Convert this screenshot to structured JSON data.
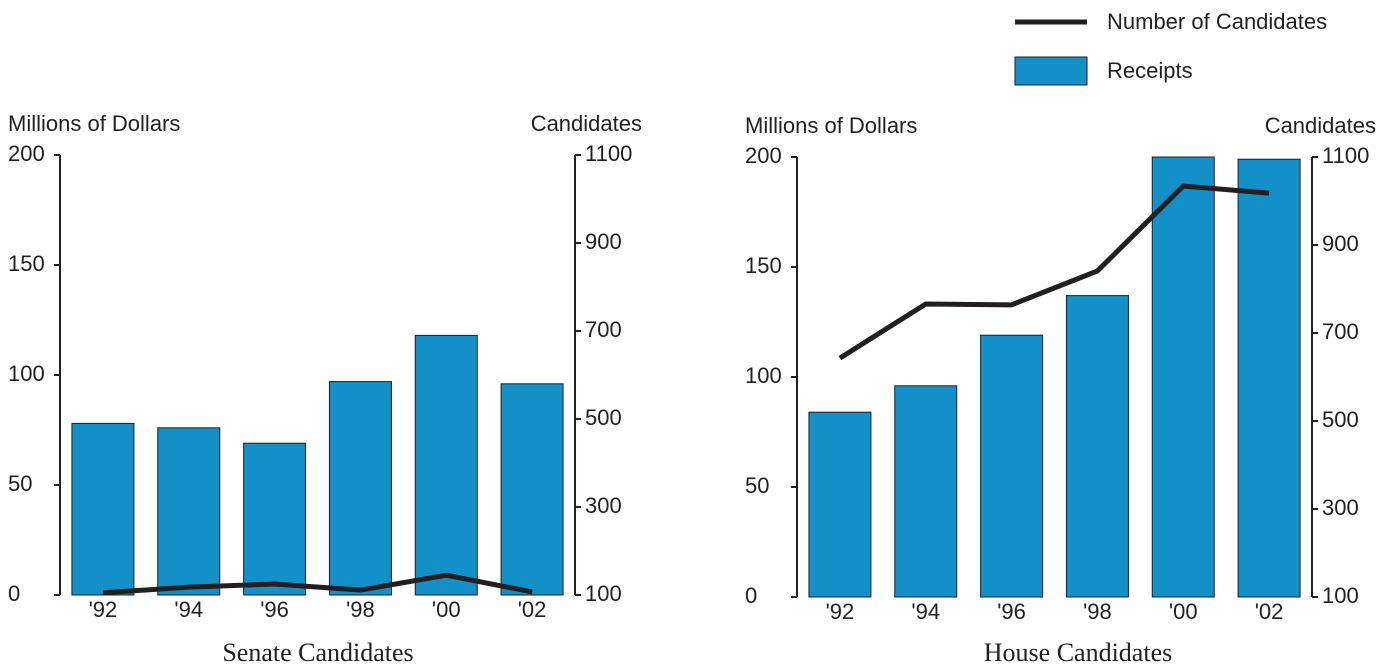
{
  "legend": [
    "Number of Candidates",
    "Receipts"
  ],
  "chart_data": [
    {
      "type": "bar",
      "title": "Senate Candidates",
      "ylabel": "Millions of Dollars",
      "y2label": "Candidates",
      "categories": [
        "'92",
        "'94",
        "'96",
        "'98",
        "'00",
        "'02"
      ],
      "series": [
        {
          "type": "bar",
          "color": "#1490c8",
          "values": [
            78,
            76,
            69,
            97,
            118,
            96
          ]
        },
        {
          "type": "line",
          "axis": "y2",
          "color": "#231f20",
          "values": [
            105,
            118,
            125,
            111,
            145,
            107
          ]
        }
      ],
      "ylim": [
        0,
        200
      ],
      "yticks": [
        0,
        50,
        100,
        150,
        200
      ],
      "y2lim": [
        100,
        1100
      ],
      "y2ticks": [
        100,
        300,
        500,
        700,
        900,
        1100
      ]
    },
    {
      "type": "bar",
      "title": "House Candidates",
      "ylabel": "Millions of Dollars",
      "y2label": "Candidates",
      "categories": [
        "'92",
        "'94",
        "'96",
        "'98",
        "'00",
        "'02"
      ],
      "series": [
        {
          "type": "bar",
          "color": "#1490c8",
          "values": [
            84,
            96,
            119,
            137,
            200,
            199
          ]
        },
        {
          "type": "line",
          "axis": "y2",
          "color": "#231f20",
          "values": [
            643,
            766,
            764,
            841,
            1034,
            1018
          ]
        }
      ],
      "ylim": [
        0,
        200
      ],
      "yticks": [
        0,
        50,
        100,
        150,
        200
      ],
      "y2lim": [
        100,
        1100
      ],
      "y2ticks": [
        100,
        300,
        500,
        700,
        900,
        1100
      ]
    }
  ]
}
